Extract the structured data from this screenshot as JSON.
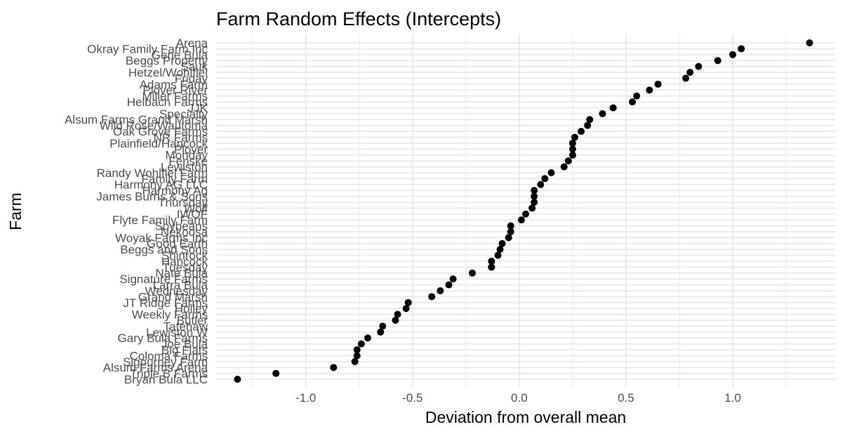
{
  "chart_data": {
    "type": "scatter",
    "title": "Farm Random Effects (Intercepts)",
    "xlabel": "Deviation from overall mean",
    "ylabel": "Farm",
    "xlim": [
      -1.42,
      1.48
    ],
    "x_ticks": [
      -1.0,
      -0.5,
      0.0,
      0.5,
      1.0
    ],
    "x_tick_labels": [
      "-1.0",
      "-0.5",
      "0.0",
      "0.5",
      "1.0"
    ],
    "grid": true,
    "legend": "none",
    "point_color": "#000000",
    "grid_color": "#ebebeb",
    "points": [
      {
        "farm": "Arena",
        "value": 1.36
      },
      {
        "farm": "Okray Family Farm Inc",
        "value": 1.04
      },
      {
        "farm": "Gene Bula",
        "value": 1.0
      },
      {
        "farm": "Beggs Property",
        "value": 0.93
      },
      {
        "farm": "Sauk",
        "value": 0.84
      },
      {
        "farm": "Hetzel/Wohlfiel",
        "value": 0.8
      },
      {
        "farm": "Friday",
        "value": 0.78
      },
      {
        "farm": "Adams Farm",
        "value": 0.65
      },
      {
        "farm": "Plover River",
        "value": 0.61
      },
      {
        "farm": "Miller Farms",
        "value": 0.55
      },
      {
        "farm": "Helbach Farms",
        "value": 0.53
      },
      {
        "farm": "JJK",
        "value": 0.44
      },
      {
        "farm": "Specialty",
        "value": 0.39
      },
      {
        "farm": "Alsum Farms Grand Marsh",
        "value": 0.33
      },
      {
        "farm": "Wild Rose/Wautoma",
        "value": 0.32
      },
      {
        "farm": "Oak Grove Farms",
        "value": 0.29
      },
      {
        "farm": "NR Farms",
        "value": 0.26
      },
      {
        "farm": "Plainfield/Hancock",
        "value": 0.25
      },
      {
        "farm": "Plover",
        "value": 0.25
      },
      {
        "farm": "Monday",
        "value": 0.25
      },
      {
        "farm": "Fenske",
        "value": 0.23
      },
      {
        "farm": "Lewiston",
        "value": 0.21
      },
      {
        "farm": "Randy Wohlfiel Farm",
        "value": 0.15
      },
      {
        "farm": "Family Farm",
        "value": 0.12
      },
      {
        "farm": "Harmony AG LLC",
        "value": 0.1
      },
      {
        "farm": "Harmony Ag",
        "value": 0.07
      },
      {
        "farm": "James Burns & Sons",
        "value": 0.07
      },
      {
        "farm": "Thursday",
        "value": 0.07
      },
      {
        "farm": "Wolf",
        "value": 0.06
      },
      {
        "farm": "IWOF",
        "value": 0.03
      },
      {
        "farm": "Flyte Family Farm",
        "value": 0.01
      },
      {
        "farm": "Soybeans",
        "value": -0.04
      },
      {
        "farm": "Nekoosa",
        "value": -0.04
      },
      {
        "farm": "Woyak Farms Inc",
        "value": -0.05
      },
      {
        "farm": "Good Earth",
        "value": -0.08
      },
      {
        "farm": "Beggs and Sons",
        "value": -0.09
      },
      {
        "farm": "Shinrock",
        "value": -0.1
      },
      {
        "farm": "Hancock",
        "value": -0.13
      },
      {
        "farm": "Tuesday",
        "value": -0.13
      },
      {
        "farm": "Nate Bula",
        "value": -0.22
      },
      {
        "farm": "Signature Farms",
        "value": -0.31
      },
      {
        "farm": "Larra Bula",
        "value": -0.33
      },
      {
        "farm": "Wednesday",
        "value": -0.37
      },
      {
        "farm": "Grand Marsh",
        "value": -0.41
      },
      {
        "farm": "JT Ridge Farms",
        "value": -0.52
      },
      {
        "farm": "Holley",
        "value": -0.53
      },
      {
        "farm": "Weekly Farms",
        "value": -0.57
      },
      {
        "farm": "Butler",
        "value": -0.58
      },
      {
        "farm": "Tatehaw",
        "value": -0.64
      },
      {
        "farm": "Lewiston W",
        "value": -0.65
      },
      {
        "farm": "Gary Bula Farms",
        "value": -0.71
      },
      {
        "farm": "Joe Bula",
        "value": -0.74
      },
      {
        "farm": "Big Flats",
        "value": -0.76
      },
      {
        "farm": "Coloma Farms",
        "value": -0.76
      },
      {
        "farm": "Sigourney Farm",
        "value": -0.77
      },
      {
        "farm": "Alsum Farms Arena",
        "value": -0.87
      },
      {
        "farm": "Triple B Farms",
        "value": -1.14
      },
      {
        "farm": "Bryan Bula LLC",
        "value": -1.32
      }
    ]
  }
}
